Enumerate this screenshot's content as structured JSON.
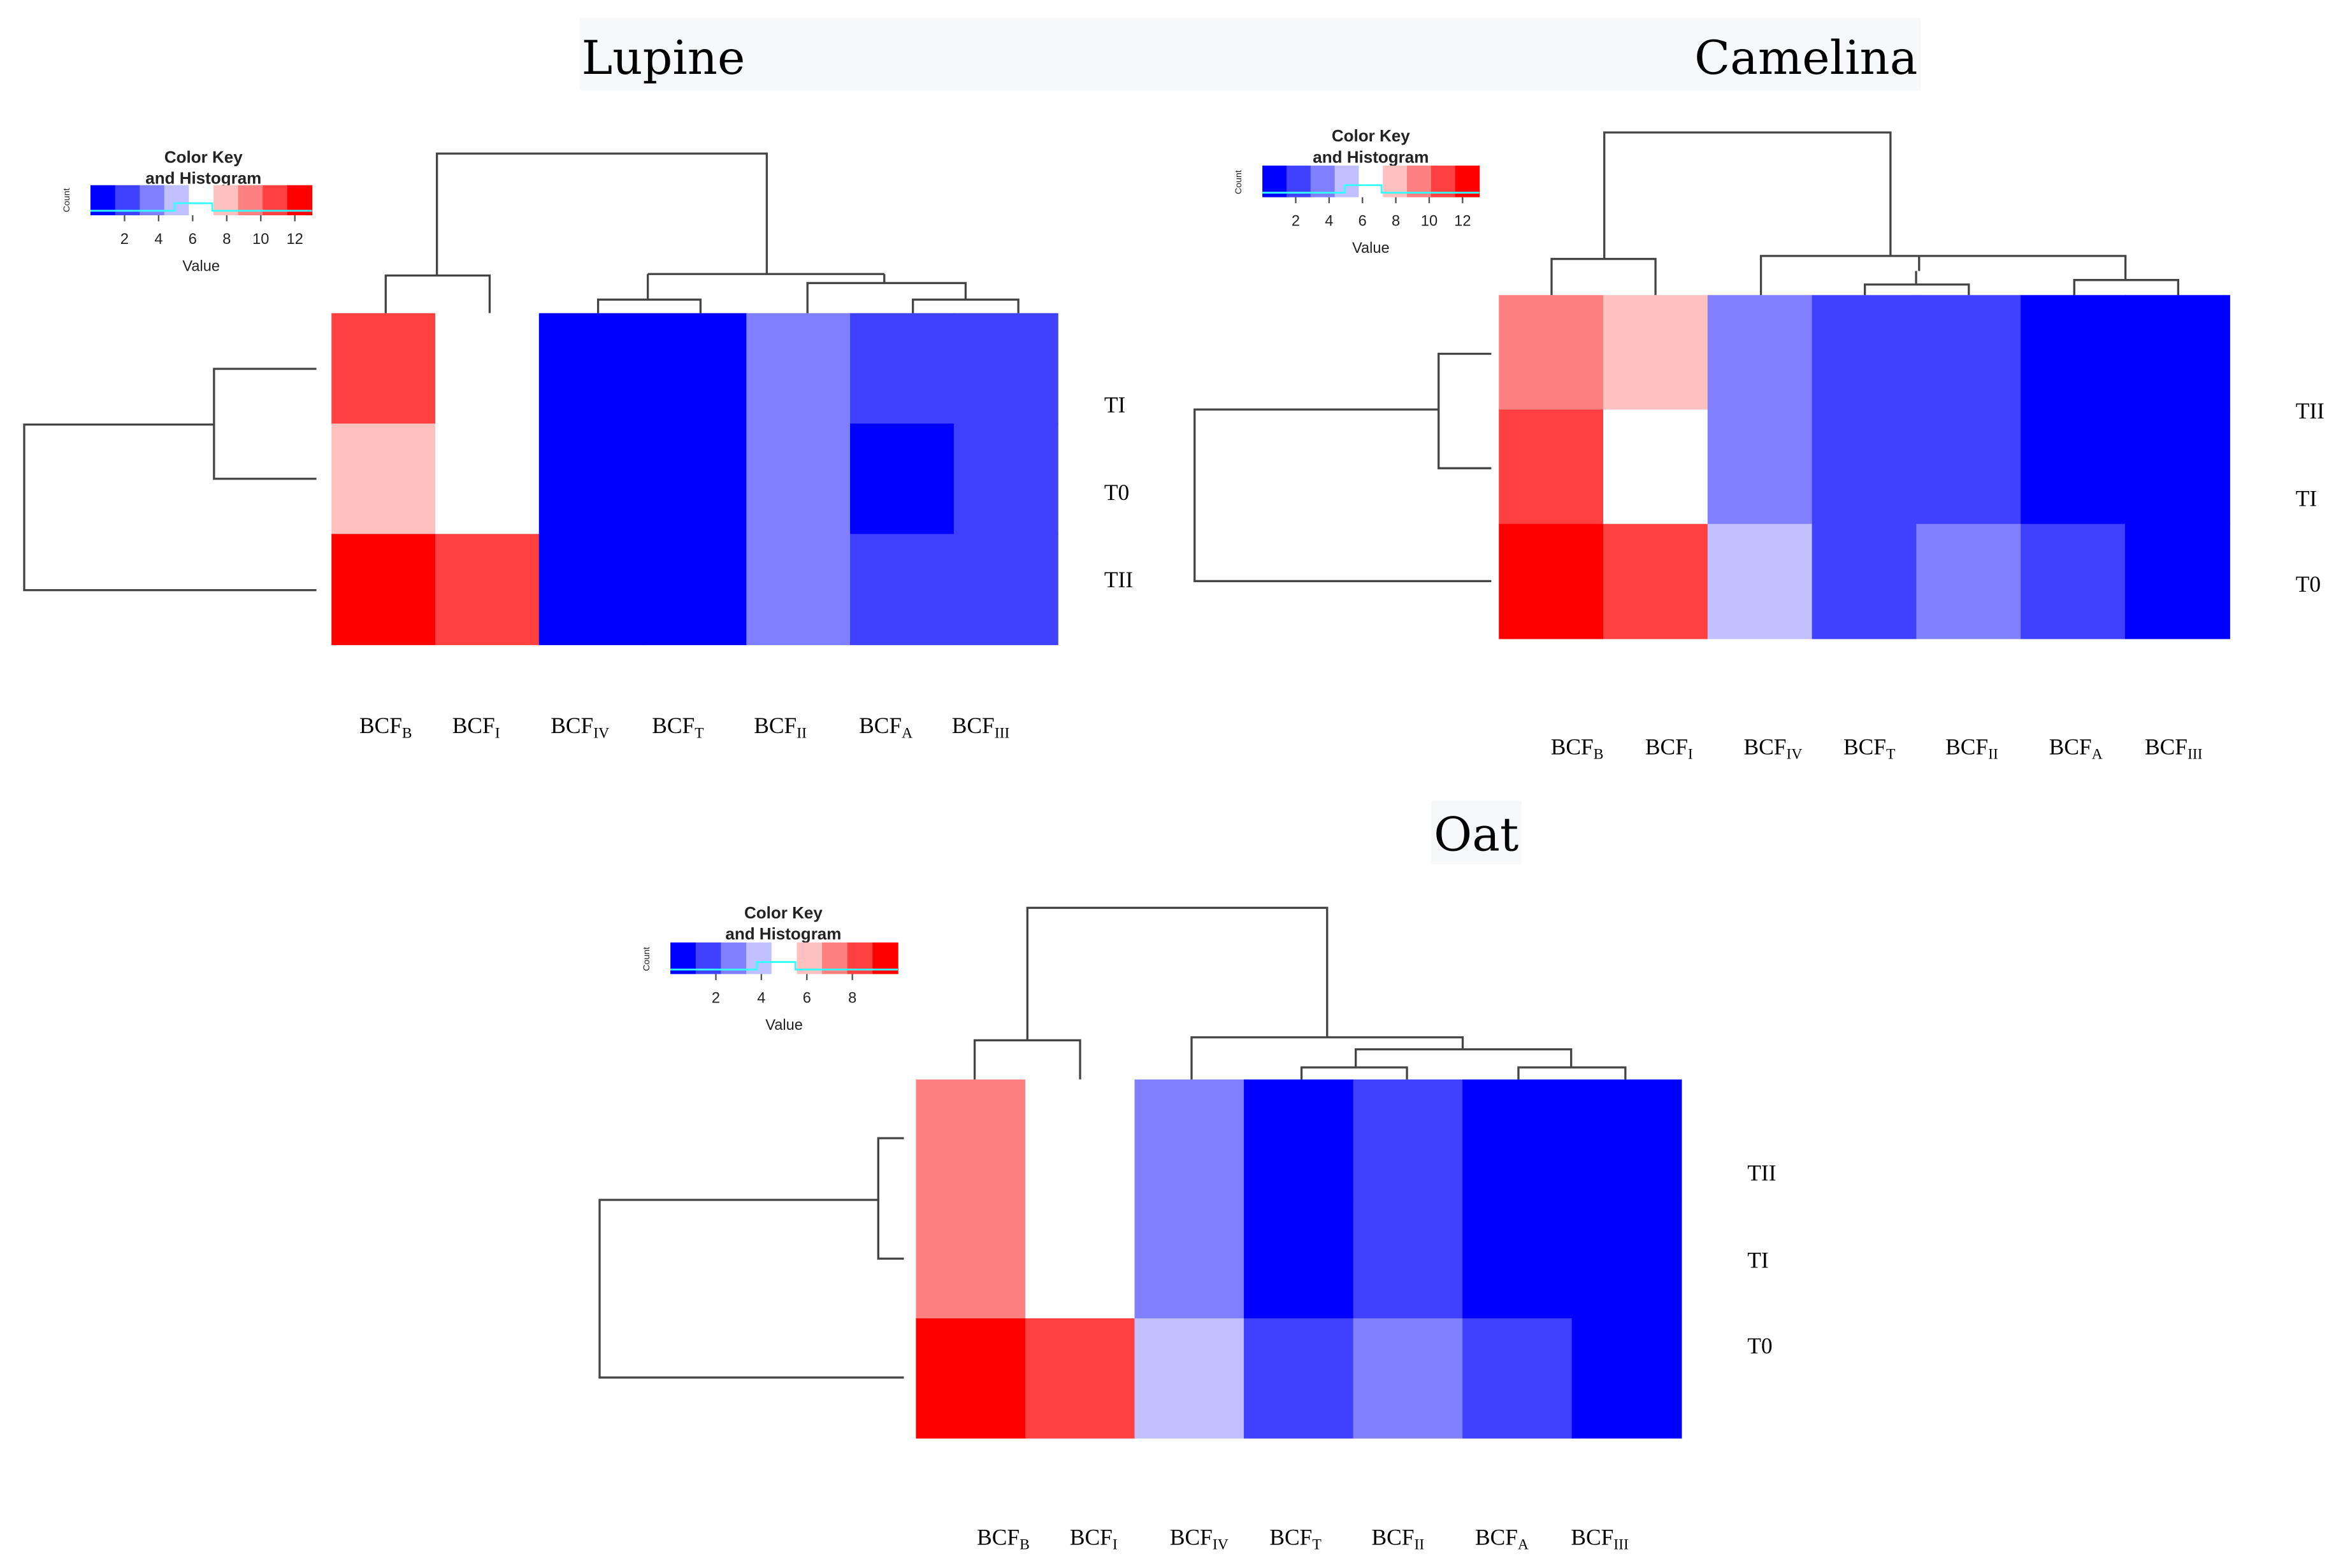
{
  "chart_data": [
    {
      "type": "heatmap",
      "title": "Lupine",
      "color_key": {
        "title_line1": "Color Key",
        "title_line2": "and Histogram",
        "xlabel": "Value",
        "ylabel": "Count",
        "ticks": [
          "2",
          "4",
          "6",
          "8",
          "10",
          "12"
        ],
        "range": [
          0,
          13
        ]
      },
      "rows": [
        "TI",
        "T0",
        "TII"
      ],
      "columns": [
        {
          "base": "BCF",
          "sub": "B"
        },
        {
          "base": "BCF",
          "sub": "I"
        },
        {
          "base": "BCF",
          "sub": "IV"
        },
        {
          "base": "BCF",
          "sub": "T"
        },
        {
          "base": "BCF",
          "sub": "II"
        },
        {
          "base": "BCF",
          "sub": "A"
        },
        {
          "base": "BCF",
          "sub": "III"
        }
      ],
      "values": [
        [
          10.5,
          6.5,
          1,
          1,
          4,
          2.5,
          2.5
        ],
        [
          8,
          6.5,
          1,
          1,
          4,
          1,
          2.5
        ],
        [
          12.5,
          10.5,
          1,
          1,
          4,
          2.5,
          2.5
        ]
      ]
    },
    {
      "type": "heatmap",
      "title": "Camelina",
      "color_key": {
        "title_line1": "Color Key",
        "title_line2": "and Histogram",
        "xlabel": "Value",
        "ylabel": "Count",
        "ticks": [
          "2",
          "4",
          "6",
          "8",
          "10",
          "12"
        ],
        "range": [
          0,
          13
        ]
      },
      "rows": [
        "TII",
        "TI",
        "T0"
      ],
      "columns": [
        {
          "base": "BCF",
          "sub": "B"
        },
        {
          "base": "BCF",
          "sub": "I"
        },
        {
          "base": "BCF",
          "sub": "IV"
        },
        {
          "base": "BCF",
          "sub": "T"
        },
        {
          "base": "BCF",
          "sub": "II"
        },
        {
          "base": "BCF",
          "sub": "A"
        },
        {
          "base": "BCF",
          "sub": "III"
        }
      ],
      "values": [
        [
          9.5,
          8,
          4,
          2.5,
          2.5,
          1,
          1
        ],
        [
          10.5,
          6.5,
          4,
          2.5,
          2.5,
          1,
          1
        ],
        [
          12.5,
          10.5,
          5,
          2.5,
          4,
          2.5,
          1
        ]
      ]
    },
    {
      "type": "heatmap",
      "title": "Oat",
      "color_key": {
        "title_line1": "Color Key",
        "title_line2": "and Histogram",
        "xlabel": "Value",
        "ylabel": "Count",
        "ticks": [
          "2",
          "4",
          "6",
          "8"
        ],
        "range": [
          0,
          10
        ]
      },
      "rows": [
        "TII",
        "TI",
        "T0"
      ],
      "columns": [
        {
          "base": "BCF",
          "sub": "B"
        },
        {
          "base": "BCF",
          "sub": "I"
        },
        {
          "base": "BCF",
          "sub": "IV"
        },
        {
          "base": "BCF",
          "sub": "T"
        },
        {
          "base": "BCF",
          "sub": "II"
        },
        {
          "base": "BCF",
          "sub": "A"
        },
        {
          "base": "BCF",
          "sub": "III"
        }
      ],
      "values": [
        [
          7.2,
          5,
          2.7,
          0.5,
          1.6,
          0.5,
          0.5
        ],
        [
          7.2,
          5,
          2.7,
          0.5,
          1.6,
          0.5,
          0.5
        ],
        [
          9.5,
          8.3,
          3.8,
          1.6,
          2.7,
          1.6,
          0.5
        ]
      ]
    }
  ],
  "palette": [
    "#0000FF",
    "#4040FF",
    "#8080FF",
    "#C0C0FF",
    "#FFFFFF",
    "#FFC0C0",
    "#FF8080",
    "#FF4040",
    "#FF0000"
  ]
}
